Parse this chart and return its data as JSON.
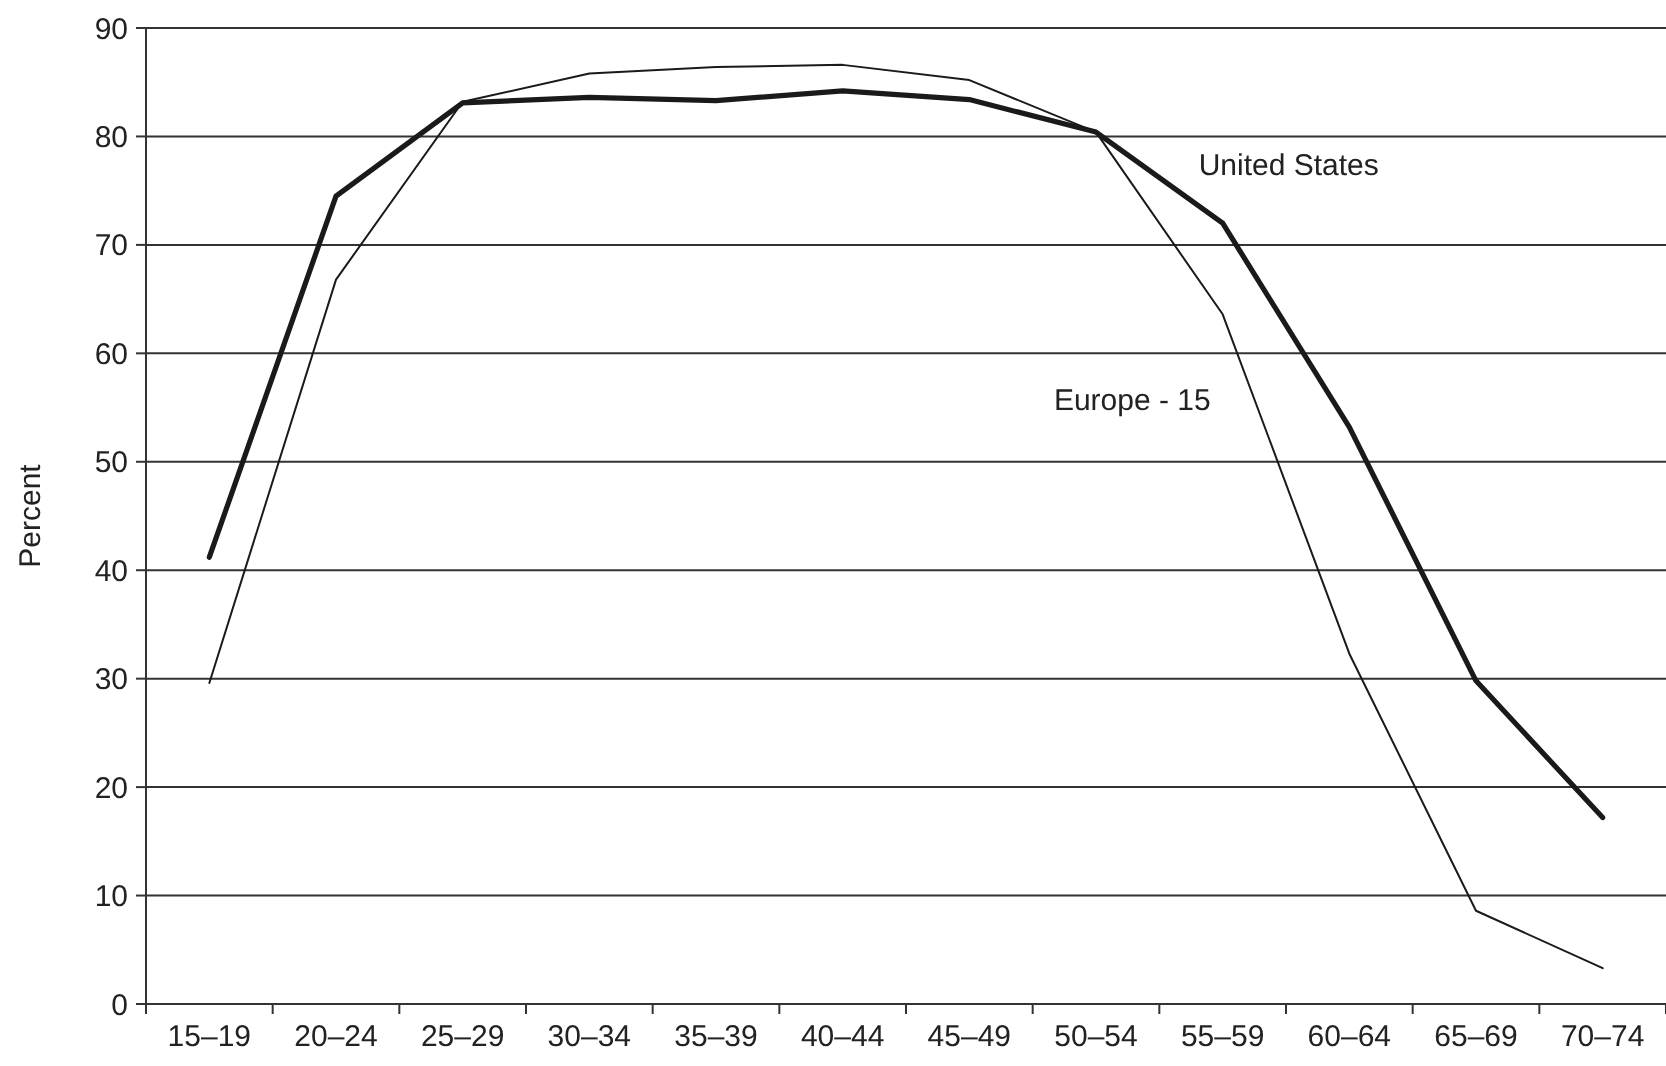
{
  "chart_data": {
    "type": "line",
    "ylabel": "Percent",
    "categories": [
      "15–19",
      "20–24",
      "25–29",
      "30–34",
      "35–39",
      "40–44",
      "45–49",
      "50–54",
      "55–59",
      "60–64",
      "65–69",
      "70–74"
    ],
    "series": [
      {
        "name": "United States",
        "color": "#1a1a1a",
        "values": [
          41.2,
          74.5,
          83.1,
          83.6,
          83.3,
          84.2,
          83.4,
          80.4,
          72.0,
          53.2,
          29.8,
          17.2
        ]
      },
      {
        "name": "Europe - 15",
        "color": "#1a1a1a",
        "values": [
          29.6,
          66.8,
          83.2,
          85.8,
          86.4,
          86.6,
          85.2,
          80.4,
          63.6,
          32.3,
          8.6,
          3.3
        ]
      }
    ],
    "ylim": [
      0,
      90
    ],
    "yticks": [
      0,
      10,
      20,
      30,
      40,
      50,
      60,
      70,
      80,
      90
    ],
    "grid": "y",
    "marker": "none",
    "line_style": "solid",
    "legend": false
  }
}
